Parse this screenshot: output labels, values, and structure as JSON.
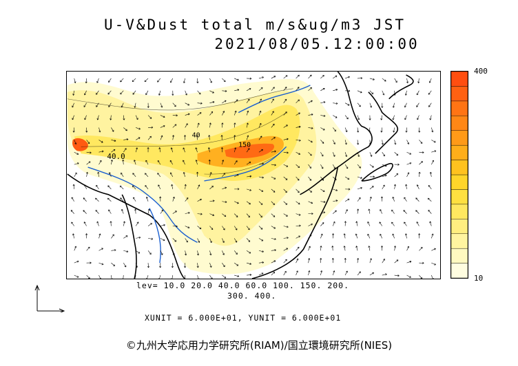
{
  "title": "U-V&Dust total m/s&ug/m3 JST",
  "datetime": "2021/08/05.12:00:00",
  "colorbar": {
    "max_label": "400",
    "min_label": "10",
    "colors": [
      "#fffde0",
      "#fff9c0",
      "#fff4a0",
      "#ffee80",
      "#ffe860",
      "#ffe040",
      "#ffd52a",
      "#ffc21f",
      "#ffae1a",
      "#ff9a18",
      "#ff8716",
      "#ff7414",
      "#ff6112",
      "#ff4e10"
    ]
  },
  "contour_labels": [
    "40.0",
    "40",
    "150"
  ],
  "levels_line1": "lev= 10.0 20.0 40.0 60.0 100. 150. 200.",
  "levels_line2": "300. 400.",
  "units_line": "XUNIT = 6.000E+01, YUNIT = 6.000E+01",
  "footer": "©九州大学応用力学研究所(RIAM)/国立環境研究所(NIES)"
}
